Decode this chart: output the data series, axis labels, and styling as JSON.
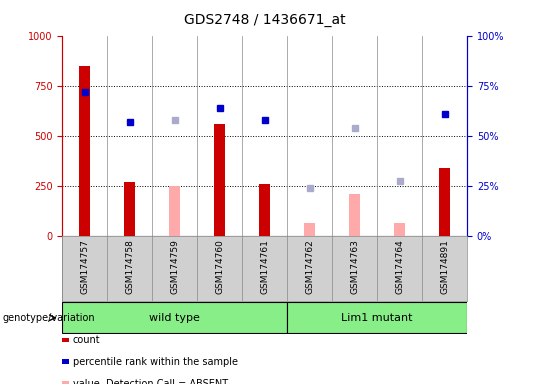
{
  "title": "GDS2748 / 1436671_at",
  "samples": [
    "GSM174757",
    "GSM174758",
    "GSM174759",
    "GSM174760",
    "GSM174761",
    "GSM174762",
    "GSM174763",
    "GSM174764",
    "GSM174891"
  ],
  "count_values": [
    850,
    270,
    null,
    560,
    260,
    null,
    null,
    null,
    340
  ],
  "absent_value_values": [
    null,
    null,
    250,
    null,
    null,
    65,
    210,
    65,
    null
  ],
  "percentile_rank": [
    720,
    570,
    null,
    640,
    580,
    null,
    null,
    null,
    610
  ],
  "absent_rank_values": [
    null,
    null,
    580,
    null,
    null,
    240,
    540,
    275,
    null
  ],
  "wild_type_indices": [
    0,
    1,
    2,
    3,
    4
  ],
  "lim1_mutant_indices": [
    5,
    6,
    7,
    8
  ],
  "ylim_left": [
    0,
    1000
  ],
  "ylim_right": [
    0,
    100
  ],
  "yticks_left": [
    0,
    250,
    500,
    750,
    1000
  ],
  "yticks_right": [
    0,
    25,
    50,
    75,
    100
  ],
  "color_count": "#cc0000",
  "color_absent_value": "#ffaaaa",
  "color_percentile": "#0000cc",
  "color_absent_rank": "#aaaacc",
  "bar_width": 0.25,
  "plot_bg": "#d8d8d8",
  "wild_type_bg": "#88ee88",
  "lim1_mutant_bg": "#88ee88",
  "label_area_bg": "#d0d0d0"
}
